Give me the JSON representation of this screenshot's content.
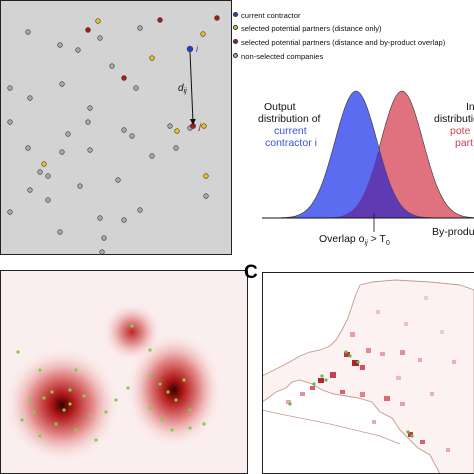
{
  "legend": {
    "items": [
      {
        "label": "current contractor",
        "color": "#1f3fd0"
      },
      {
        "label": "selected potential partners (distance only)",
        "color": "#e6c419"
      },
      {
        "label": "selected potential partners (distance and by-product overlap)",
        "color": "#b01818"
      },
      {
        "label": "non-selected companies",
        "color": "#a9a9a9"
      }
    ]
  },
  "scatter": {
    "label_i": "i",
    "label_j": "j",
    "label_dij": "dij",
    "dij_sub": "ij"
  },
  "distribution": {
    "left_line1": "Output",
    "left_line2": "distribution of",
    "left_line3": "current",
    "left_line4": "contractor i",
    "right_line1": "In",
    "right_line2": "distributio",
    "right_line3": "pote",
    "right_line4": "part",
    "overlap_label": "Overlap o",
    "overlap_sub": "ij",
    "overlap_rest": " > T",
    "overlap_t_sub": "0",
    "byproduct_label": "By-produ",
    "color_output": "#5b6cf0",
    "color_input": "#e0717e",
    "color_overlap": "#5e3bb2"
  },
  "panels": {
    "letter_c": "C"
  }
}
